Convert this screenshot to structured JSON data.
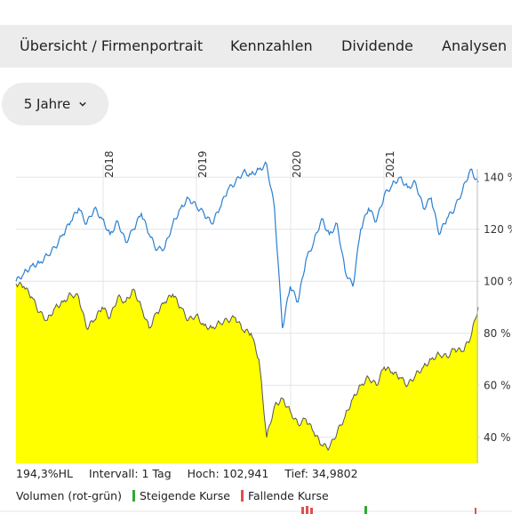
{
  "tabs": [
    {
      "label": "Übersicht / Firmenportrait"
    },
    {
      "label": "Kennzahlen"
    },
    {
      "label": "Dividende"
    },
    {
      "label": "Analysen"
    }
  ],
  "period": {
    "label": "5 Jahre"
  },
  "stats": {
    "value": "194,3%HL",
    "interval": "Intervall: 1 Tag",
    "high": "Hoch: 102,941",
    "low": "Tief: 34,9802"
  },
  "legend": {
    "volume": "Volumen (rot-grün)",
    "rising": "Steigende Kurse",
    "falling": "Fallende Kurse",
    "rising_color": "#2eaa2e",
    "falling_color": "#e05050"
  },
  "chart_data": {
    "type": "area",
    "x_ticks": [
      "2018",
      "2019",
      "2020",
      "2021"
    ],
    "y_ticks": [
      "140 %",
      "120 %",
      "100 %",
      "80 %",
      "60 %",
      "40 %"
    ],
    "ylim": [
      30,
      150
    ],
    "series": [
      {
        "color": "#2a7fd0",
        "style": "line",
        "values": [
          100,
          103,
          106,
          107,
          110,
          113,
          118,
          123,
          128,
          122,
          128,
          124,
          118,
          123,
          115,
          120,
          126,
          118,
          112,
          113,
          122,
          128,
          132,
          129,
          126,
          122,
          128,
          135,
          138,
          142,
          141,
          143,
          145,
          128,
          82,
          98,
          92,
          108,
          115,
          124,
          118,
          122,
          104,
          98,
          120,
          128,
          123,
          133,
          137,
          140,
          136,
          138,
          128,
          132,
          118,
          124,
          128,
          135,
          143,
          138
        ]
      },
      {
        "color": "#ffff00",
        "style": "area",
        "values": [
          99,
          98,
          94,
          88,
          85,
          90,
          92,
          95,
          94,
          82,
          85,
          90,
          86,
          94,
          92,
          97,
          90,
          82,
          88,
          92,
          95,
          90,
          85,
          87,
          83,
          82,
          84,
          85,
          86,
          81,
          80,
          70,
          40,
          52,
          55,
          50,
          45,
          47,
          42,
          37,
          36,
          42,
          48,
          55,
          60,
          63,
          60,
          67,
          65,
          63,
          60,
          64,
          67,
          70,
          72,
          71,
          74,
          73,
          78,
          90
        ]
      }
    ]
  }
}
